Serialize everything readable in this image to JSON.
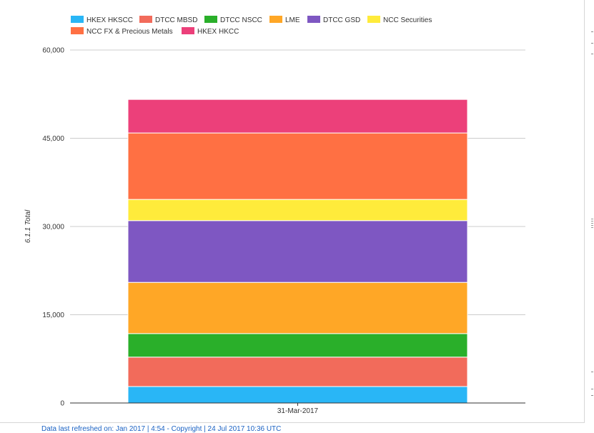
{
  "chart_data": {
    "type": "bar",
    "stacked": true,
    "categories": [
      "31-Mar-2017"
    ],
    "series": [
      {
        "name": "HKEX HKSCC",
        "color": "#29b6f6",
        "values": [
          2800
        ]
      },
      {
        "name": "DTCC MBSD",
        "color": "#f26b5b",
        "values": [
          5000
        ]
      },
      {
        "name": "DTCC NSCC",
        "color": "#2aaf2a",
        "values": [
          4000
        ]
      },
      {
        "name": "LME",
        "color": "#ffa726",
        "values": [
          8700
        ]
      },
      {
        "name": "DTCC GSD",
        "color": "#7e57c2",
        "values": [
          10500
        ]
      },
      {
        "name": "NCC Securities",
        "color": "#ffeb3b",
        "values": [
          3600
        ]
      },
      {
        "name": "NCC FX & Precious Metals",
        "color": "#ff7043",
        "values": [
          11300
        ]
      },
      {
        "name": "HKEX HKCC",
        "color": "#ec407a",
        "values": [
          5700
        ]
      }
    ],
    "ylabel": "6.1.1 Total",
    "xlabel": "",
    "ylim": [
      0,
      60000
    ],
    "yticks": [
      0,
      15000,
      30000,
      45000,
      60000
    ],
    "ytick_labels": [
      "0",
      "15,000",
      "30,000",
      "45,000",
      "60,000"
    ],
    "grid": true,
    "legend_position": "top-left"
  },
  "footer": {
    "text": "Data last refreshed on: Jan 2017 | 4:54 - Copyright | 24 Jul 2017 10:36 UTC"
  }
}
